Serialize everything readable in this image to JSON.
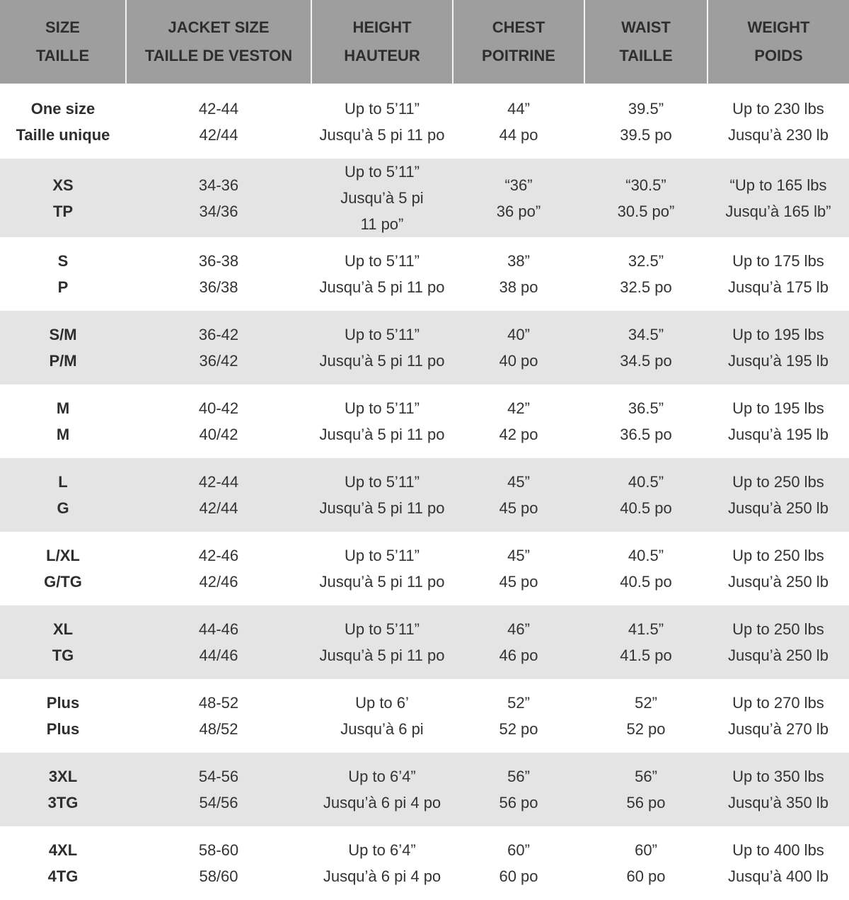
{
  "headers": [
    {
      "en": "SIZE",
      "fr": "TAILLE"
    },
    {
      "en": "JACKET SIZE",
      "fr": "TAILLE DE VESTON"
    },
    {
      "en": "HEIGHT",
      "fr": "HAUTEUR"
    },
    {
      "en": "CHEST",
      "fr": "POITRINE"
    },
    {
      "en": "WAIST",
      "fr": "TAILLE"
    },
    {
      "en": "WEIGHT",
      "fr": "POIDS"
    }
  ],
  "rows": [
    [
      [
        "One size",
        "Taille unique"
      ],
      [
        "42-44",
        "42/44"
      ],
      [
        "Up to 5’11”",
        "Jusqu’à 5 pi 11 po"
      ],
      [
        "44”",
        "44 po"
      ],
      [
        "39.5”",
        "39.5 po"
      ],
      [
        "Up to 230 lbs",
        "Jusqu’à 230 lb"
      ]
    ],
    [
      [
        "XS",
        "TP"
      ],
      [
        "34-36",
        "34/36"
      ],
      [
        "Up to 5’11”",
        "Jusqu’à 5 pi",
        "11 po”"
      ],
      [
        "“36”",
        "36 po”"
      ],
      [
        "“30.5”",
        "30.5 po”"
      ],
      [
        "“Up to 165 lbs",
        "Jusqu’à 165 lb”"
      ]
    ],
    [
      [
        "S",
        "P"
      ],
      [
        "36-38",
        "36/38"
      ],
      [
        "Up to 5’11”",
        "Jusqu’à 5 pi 11 po"
      ],
      [
        "38”",
        "38 po"
      ],
      [
        "32.5”",
        "32.5 po"
      ],
      [
        "Up to 175 lbs",
        "Jusqu’à 175 lb"
      ]
    ],
    [
      [
        "S/M",
        "P/M"
      ],
      [
        "36-42",
        "36/42"
      ],
      [
        "Up to 5’11”",
        "Jusqu’à 5 pi 11 po"
      ],
      [
        "40”",
        "40 po"
      ],
      [
        "34.5”",
        "34.5 po"
      ],
      [
        "Up to 195 lbs",
        "Jusqu’à 195 lb"
      ]
    ],
    [
      [
        "M",
        "M"
      ],
      [
        "40-42",
        "40/42"
      ],
      [
        "Up to 5’11”",
        "Jusqu’à 5 pi 11 po"
      ],
      [
        "42”",
        "42 po"
      ],
      [
        "36.5”",
        "36.5 po"
      ],
      [
        "Up to 195 lbs",
        "Jusqu’à 195 lb"
      ]
    ],
    [
      [
        "L",
        "G"
      ],
      [
        "42-44",
        "42/44"
      ],
      [
        "Up to 5’11”",
        "Jusqu’à 5 pi 11 po"
      ],
      [
        "45”",
        "45 po"
      ],
      [
        "40.5”",
        "40.5 po"
      ],
      [
        "Up to 250 lbs",
        "Jusqu’à 250 lb"
      ]
    ],
    [
      [
        "L/XL",
        "G/TG"
      ],
      [
        "42-46",
        "42/46"
      ],
      [
        "Up to 5’11”",
        "Jusqu’à 5 pi 11 po"
      ],
      [
        "45”",
        "45 po"
      ],
      [
        "40.5”",
        "40.5 po"
      ],
      [
        "Up to 250 lbs",
        "Jusqu’à 250 lb"
      ]
    ],
    [
      [
        "XL",
        "TG"
      ],
      [
        "44-46",
        "44/46"
      ],
      [
        "Up to 5’11”",
        "Jusqu’à 5 pi 11 po"
      ],
      [
        "46”",
        "46 po"
      ],
      [
        "41.5”",
        "41.5 po"
      ],
      [
        "Up to 250 lbs",
        "Jusqu’à 250 lb"
      ]
    ],
    [
      [
        "Plus",
        "Plus"
      ],
      [
        "48-52",
        "48/52"
      ],
      [
        "Up to 6’",
        "Jusqu’à 6 pi"
      ],
      [
        "52”",
        "52 po"
      ],
      [
        "52”",
        "52 po"
      ],
      [
        "Up to 270 lbs",
        "Jusqu’à 270 lb"
      ]
    ],
    [
      [
        "3XL",
        "3TG"
      ],
      [
        "54-56",
        "54/56"
      ],
      [
        "Up to 6’4”",
        "Jusqu’à 6 pi 4 po"
      ],
      [
        "56”",
        "56 po"
      ],
      [
        "56”",
        "56 po"
      ],
      [
        "Up to 350 lbs",
        "Jusqu’à 350 lb"
      ]
    ],
    [
      [
        "4XL",
        "4TG"
      ],
      [
        "58-60",
        "58/60"
      ],
      [
        "Up to 6’4”",
        "Jusqu’à 6 pi 4 po"
      ],
      [
        "60”",
        "60 po"
      ],
      [
        "60”",
        "60 po"
      ],
      [
        "Up to 400 lbs",
        "Jusqu’à 400 lb"
      ]
    ]
  ],
  "colors": {
    "header_bg": "#9e9e9e",
    "alt_row_bg": "#e4e4e4",
    "text": "#333333"
  }
}
